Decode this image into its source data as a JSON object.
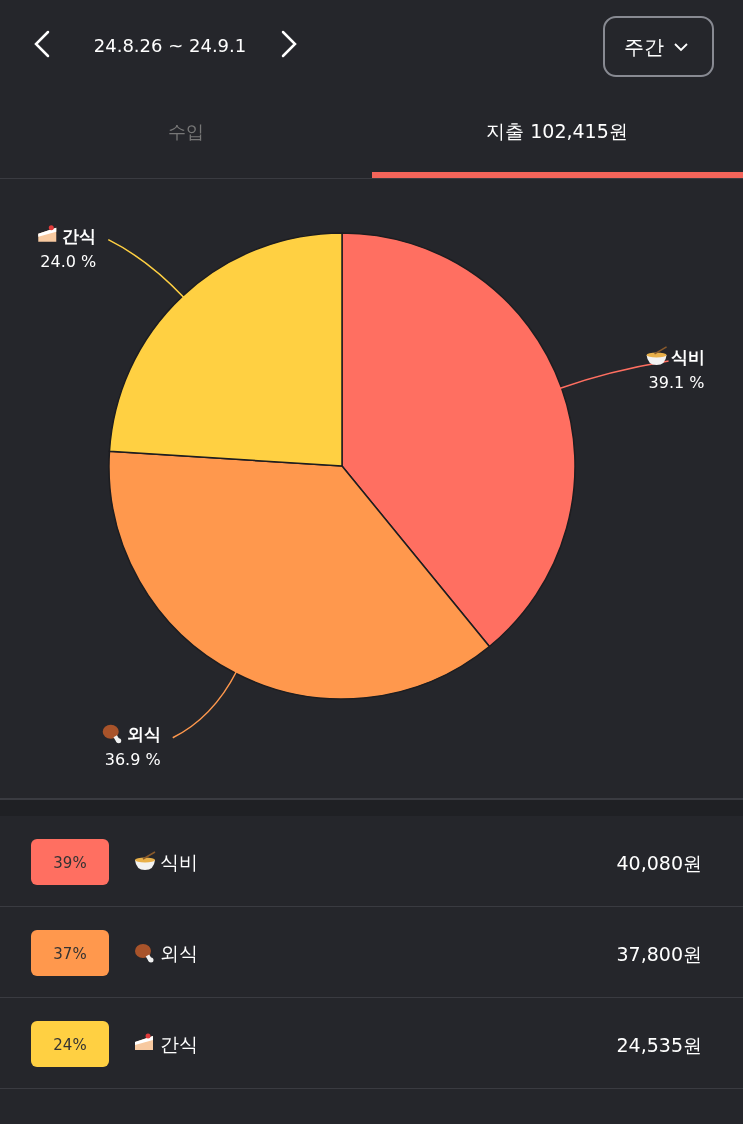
{
  "chart_data": {
    "type": "pie",
    "categories": [
      "식비",
      "외식",
      "간식"
    ],
    "values": [
      39.1,
      36.9,
      24.0
    ],
    "colors": [
      "#ff6f61",
      "#ff984d",
      "#ffd042"
    ],
    "value_labels": [
      "39.1 %",
      "36.9 %",
      "24.0 %"
    ],
    "annotations": [
      "24.8.26 ~ 24.9.1",
      "주간",
      "수입",
      "지출 102,415원",
      "39%",
      "40,080원",
      "37%",
      "37,800원",
      "24%",
      "24,535원"
    ]
  }
}
